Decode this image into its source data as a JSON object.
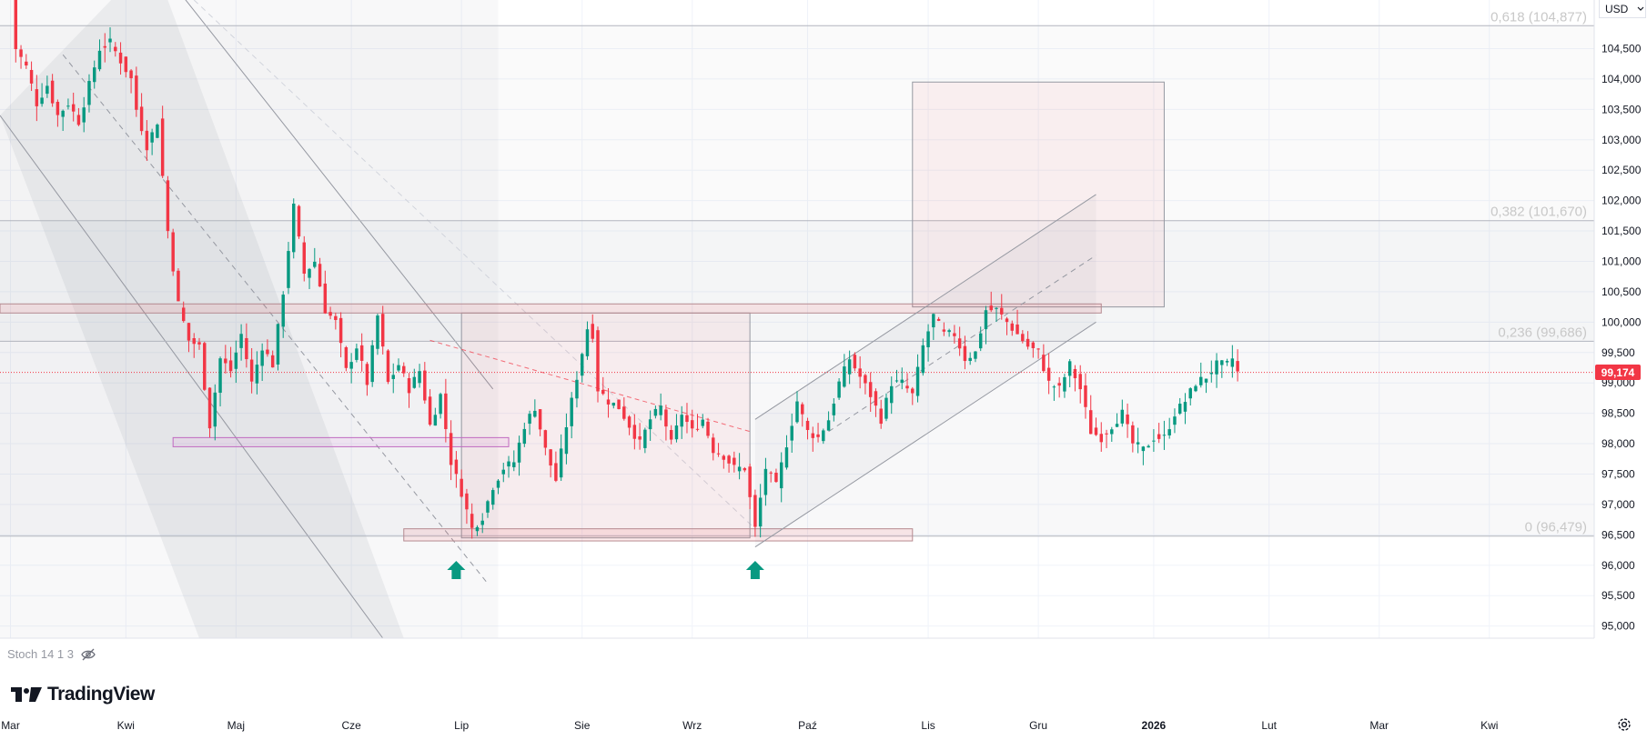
{
  "currency_selector": {
    "label": "USD",
    "icon": "chevron-down-icon"
  },
  "price_badge": {
    "value": "99,174",
    "color": "#f23645"
  },
  "indicator": {
    "label": "Stoch 14 1 3",
    "icon": "eye-hidden-icon"
  },
  "branding": {
    "name": "TradingView",
    "icon": "tradingview-logo-icon"
  },
  "settings": {
    "icon": "gear-icon"
  },
  "colors": {
    "up": "#089981",
    "down": "#f23645",
    "grid": "#f0f3fa"
  },
  "chart_data": {
    "type": "candlestick",
    "title": "",
    "y_ticks": [
      "104,500",
      "104,000",
      "103,500",
      "103,000",
      "102,500",
      "102,000",
      "101,500",
      "101,000",
      "100,500",
      "100,000",
      "99,500",
      "99,000",
      "98,500",
      "98,000",
      "97,500",
      "97,000",
      "96,500",
      "96,000",
      "95,500",
      "95,000"
    ],
    "ylim": [
      94.8,
      105.3
    ],
    "x_ticks": [
      {
        "label": "Mar",
        "index": 0
      },
      {
        "label": "Kwi",
        "index": 22
      },
      {
        "label": "Maj",
        "index": 43
      },
      {
        "label": "Cze",
        "index": 65
      },
      {
        "label": "Lip",
        "index": 86
      },
      {
        "label": "Sie",
        "index": 109
      },
      {
        "label": "Wrz",
        "index": 130
      },
      {
        "label": "Paź",
        "index": 152
      },
      {
        "label": "Lis",
        "index": 175
      },
      {
        "label": "Gru",
        "index": 196
      },
      {
        "label": "2026",
        "index": 218,
        "bold": true
      },
      {
        "label": "Lut",
        "index": 240
      },
      {
        "label": "Mar",
        "index": 261
      },
      {
        "label": "Kwi",
        "index": 282
      }
    ],
    "xlim": [
      -2,
      302
    ],
    "current_price": 99.174,
    "fib_levels": [
      {
        "label": "0,618 (104,877)",
        "price": 104.877
      },
      {
        "label": "0,382 (101,670)",
        "price": 101.67
      },
      {
        "label": "0,236 (99,686)",
        "price": 99.686
      },
      {
        "label": "0 (96,479)",
        "price": 96.479
      }
    ],
    "markers": [
      {
        "type": "up-arrow",
        "index": 85
      },
      {
        "type": "up-arrow",
        "index": 142
      }
    ],
    "close_path": [
      [
        0,
        106.2
      ],
      [
        1,
        104.5
      ],
      [
        3,
        104.2
      ],
      [
        5,
        103.6
      ],
      [
        7,
        103.9
      ],
      [
        9,
        103.4
      ],
      [
        11,
        103.6
      ],
      [
        13,
        103.3
      ],
      [
        15,
        103.9
      ],
      [
        17,
        104.5
      ],
      [
        19,
        104.6
      ],
      [
        21,
        104.3
      ],
      [
        23,
        104.0
      ],
      [
        24,
        103.5
      ],
      [
        26,
        102.9
      ],
      [
        28,
        103.3
      ],
      [
        30,
        101.5
      ],
      [
        32,
        100.3
      ],
      [
        34,
        99.7
      ],
      [
        36,
        99.6
      ],
      [
        38,
        98.3
      ],
      [
        40,
        99.4
      ],
      [
        42,
        99.2
      ],
      [
        44,
        99.8
      ],
      [
        46,
        99.0
      ],
      [
        48,
        99.6
      ],
      [
        50,
        99.3
      ],
      [
        52,
        100.5
      ],
      [
        54,
        101.9
      ],
      [
        56,
        100.8
      ],
      [
        58,
        101.0
      ],
      [
        60,
        100.2
      ],
      [
        62,
        100.0
      ],
      [
        64,
        99.2
      ],
      [
        66,
        99.6
      ],
      [
        68,
        99.0
      ],
      [
        70,
        100.1
      ],
      [
        72,
        99.0
      ],
      [
        74,
        99.3
      ],
      [
        76,
        98.9
      ],
      [
        78,
        99.2
      ],
      [
        80,
        98.3
      ],
      [
        82,
        98.8
      ],
      [
        84,
        97.7
      ],
      [
        86,
        97.2
      ],
      [
        88,
        96.6
      ],
      [
        90,
        96.8
      ],
      [
        92,
        97.3
      ],
      [
        94,
        97.6
      ],
      [
        96,
        97.7
      ],
      [
        98,
        98.3
      ],
      [
        100,
        98.6
      ],
      [
        102,
        97.9
      ],
      [
        104,
        97.4
      ],
      [
        106,
        98.3
      ],
      [
        108,
        99.1
      ],
      [
        110,
        99.9
      ],
      [
        111,
        99.8
      ],
      [
        112,
        98.9
      ],
      [
        114,
        98.7
      ],
      [
        116,
        98.6
      ],
      [
        118,
        98.3
      ],
      [
        120,
        98.0
      ],
      [
        122,
        98.4
      ],
      [
        124,
        98.6
      ],
      [
        126,
        98.0
      ],
      [
        128,
        98.5
      ],
      [
        130,
        98.2
      ],
      [
        132,
        98.4
      ],
      [
        134,
        97.9
      ],
      [
        136,
        97.8
      ],
      [
        138,
        97.6
      ],
      [
        140,
        97.6
      ],
      [
        142,
        96.6
      ],
      [
        144,
        97.6
      ],
      [
        146,
        97.3
      ],
      [
        148,
        98.0
      ],
      [
        150,
        98.7
      ],
      [
        152,
        98.2
      ],
      [
        154,
        98.1
      ],
      [
        156,
        98.4
      ],
      [
        158,
        99.0
      ],
      [
        160,
        99.4
      ],
      [
        162,
        99.1
      ],
      [
        164,
        98.8
      ],
      [
        166,
        98.4
      ],
      [
        168,
        99.0
      ],
      [
        170,
        99.0
      ],
      [
        172,
        98.8
      ],
      [
        174,
        99.6
      ],
      [
        176,
        100.1
      ],
      [
        178,
        99.8
      ],
      [
        180,
        99.8
      ],
      [
        182,
        99.4
      ],
      [
        184,
        99.5
      ],
      [
        186,
        100.2
      ],
      [
        188,
        100.2
      ],
      [
        190,
        100.0
      ],
      [
        192,
        99.8
      ],
      [
        194,
        99.6
      ],
      [
        196,
        99.5
      ],
      [
        198,
        99.0
      ],
      [
        200,
        98.9
      ],
      [
        202,
        99.3
      ],
      [
        204,
        98.9
      ],
      [
        206,
        98.2
      ],
      [
        208,
        98.1
      ],
      [
        210,
        98.3
      ],
      [
        212,
        98.5
      ],
      [
        214,
        98.0
      ],
      [
        216,
        97.9
      ],
      [
        218,
        98.1
      ],
      [
        220,
        98.1
      ],
      [
        222,
        98.5
      ],
      [
        224,
        98.7
      ],
      [
        226,
        99.0
      ],
      [
        228,
        99.1
      ],
      [
        230,
        99.3
      ],
      [
        232,
        99.3
      ],
      [
        233,
        99.4
      ],
      [
        234,
        99.17
      ]
    ],
    "drawings": {
      "fib_band_top": [
        101.67,
        104.877
      ],
      "fib_band_mid": [
        99.686,
        101.67
      ],
      "fib_band_bottom": [
        96.479,
        99.686
      ],
      "range_box": {
        "from_index": 86,
        "to_index": 141,
        "from_price": 96.45,
        "to_price": 100.15
      },
      "target_box": {
        "from_index": 172,
        "to_index": 220,
        "from_price": 100.25,
        "to_price": 103.95
      },
      "resistance_band": {
        "from_index": -2,
        "to_index": 208,
        "from_price": 100.15,
        "to_price": 100.3
      },
      "support_band": {
        "from_index": 75,
        "to_index": 172,
        "from_price": 96.4,
        "to_price": 96.6
      },
      "zone_band": {
        "from_index": 31,
        "to_index": 95,
        "from_price": 97.95,
        "to_price": 98.1
      }
    }
  }
}
